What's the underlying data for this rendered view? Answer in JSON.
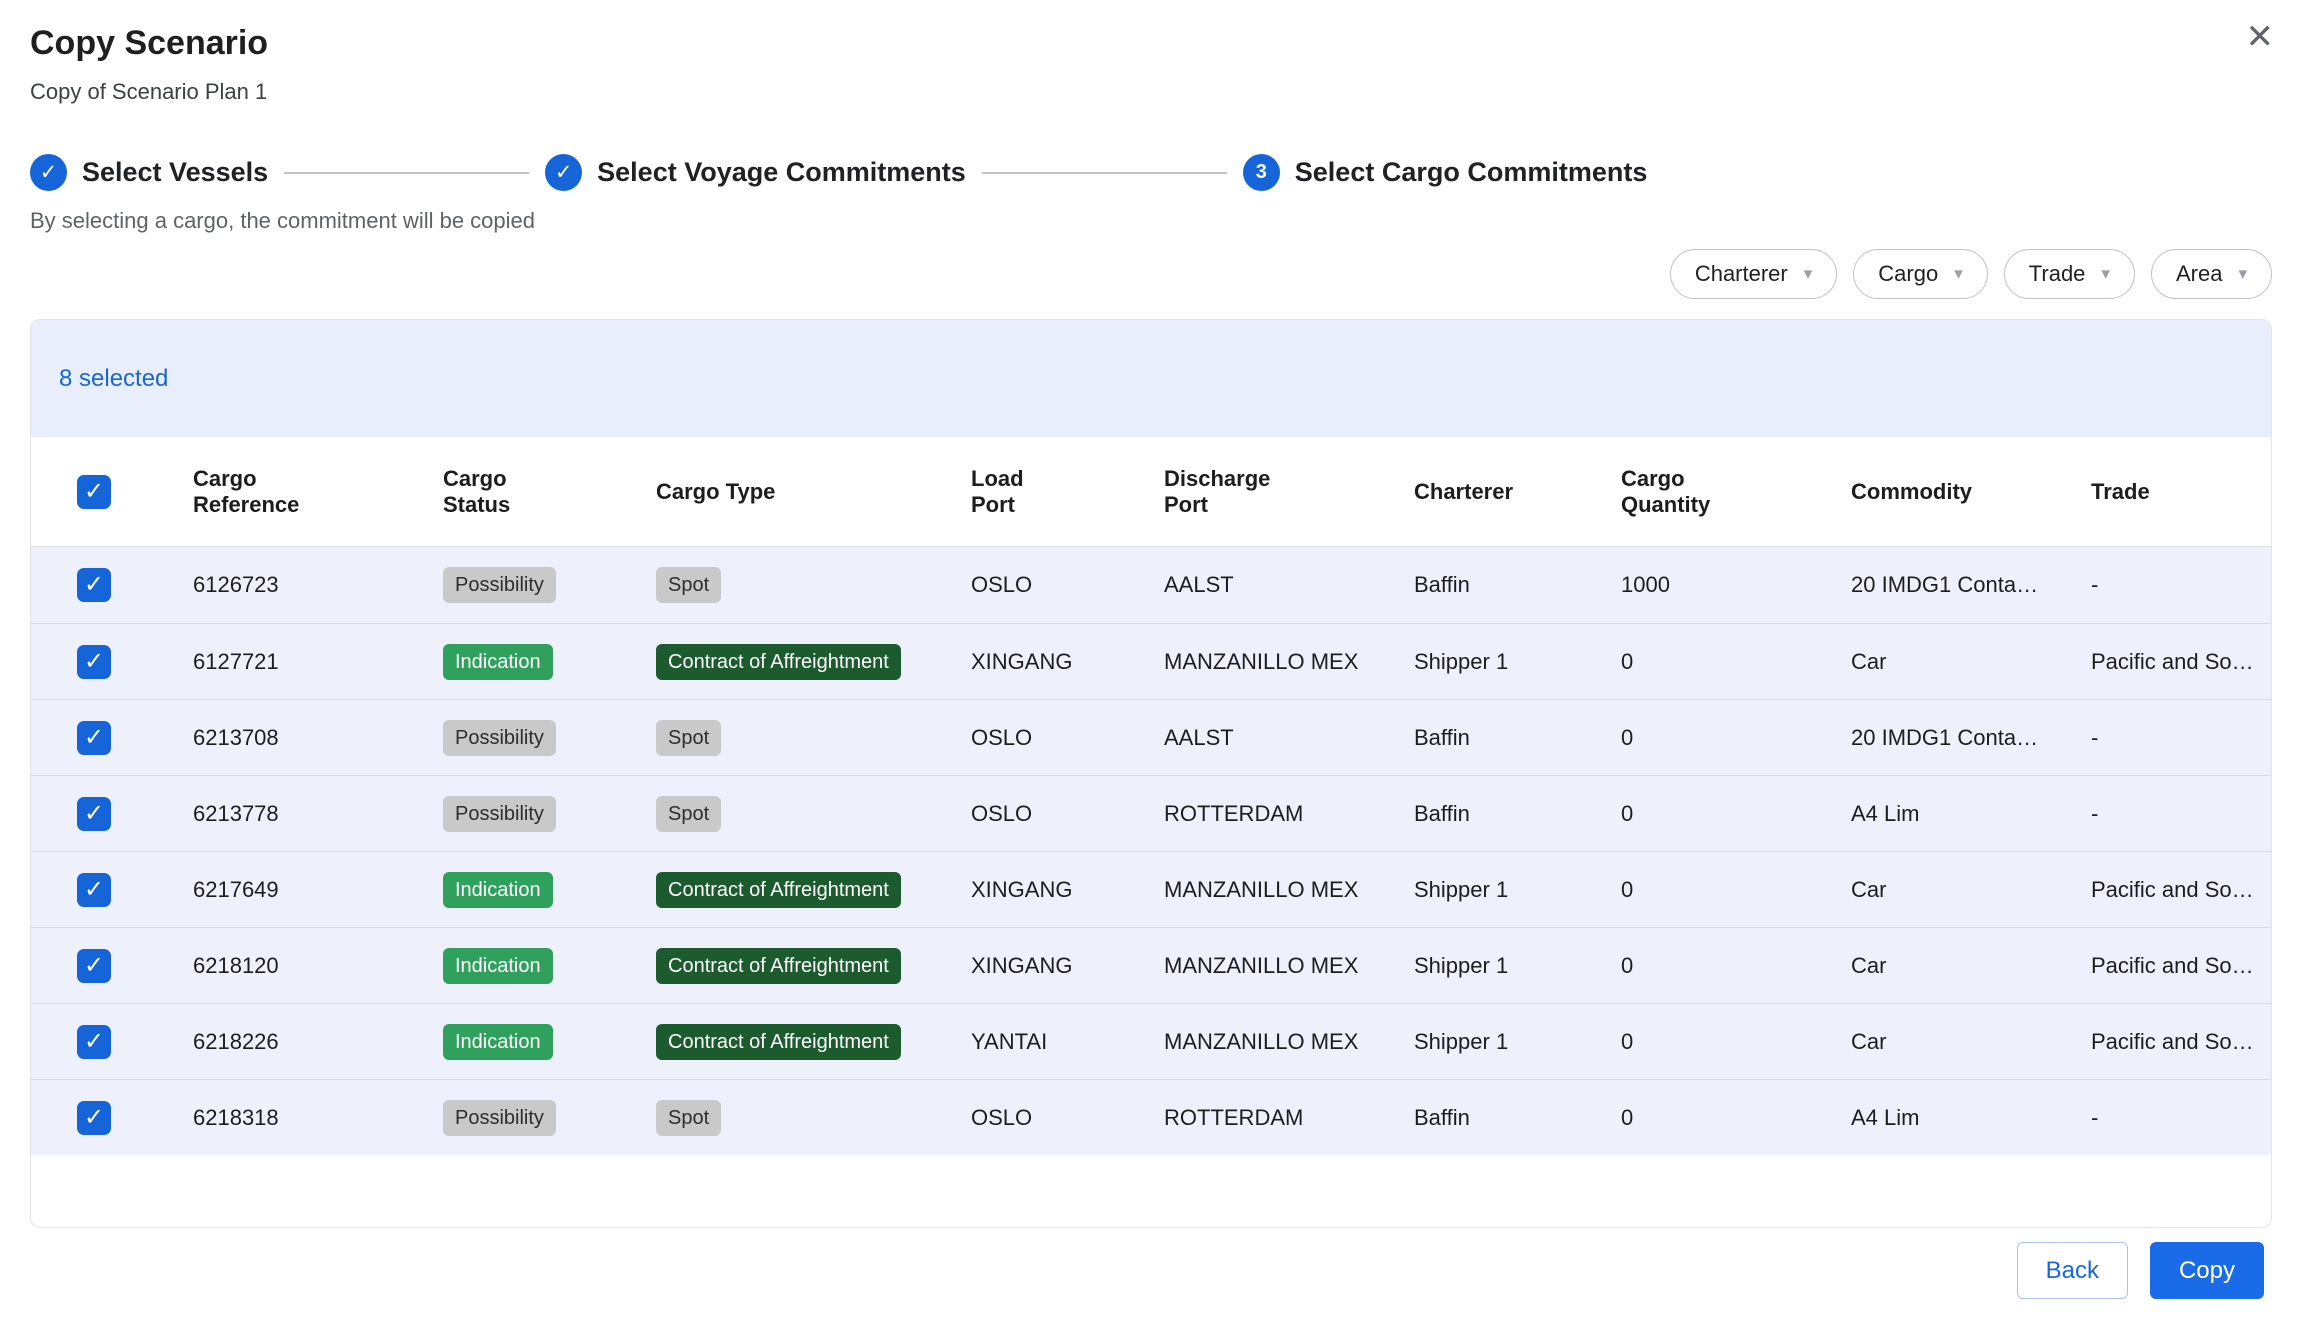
{
  "dialog": {
    "title": "Copy Scenario",
    "subtitle": "Copy of Scenario Plan 1"
  },
  "icons": {
    "close": "✕",
    "check": "✓",
    "caret_down": "▾"
  },
  "stepper": {
    "steps": [
      {
        "label": "Select Vessels",
        "state": "complete"
      },
      {
        "label": "Select Voyage Commitments",
        "state": "complete"
      },
      {
        "label": "Select Cargo Commitments",
        "state": "active",
        "number": "3"
      }
    ]
  },
  "caption": "By selecting a cargo, the commitment will be copied",
  "filters": [
    {
      "label": "Charterer"
    },
    {
      "label": "Cargo"
    },
    {
      "label": "Trade"
    },
    {
      "label": "Area"
    }
  ],
  "table": {
    "selected_text": "8 selected",
    "columns": [
      {
        "line1": "Cargo",
        "line2": "Reference"
      },
      {
        "line1": "Cargo",
        "line2": "Status"
      },
      {
        "line1": "Cargo Type",
        "line2": ""
      },
      {
        "line1": "Load",
        "line2": "Port"
      },
      {
        "line1": "Discharge",
        "line2": "Port"
      },
      {
        "line1": "Charterer",
        "line2": ""
      },
      {
        "line1": "Cargo",
        "line2": "Quantity"
      },
      {
        "line1": "Commodity",
        "line2": ""
      },
      {
        "line1": "Trade",
        "line2": ""
      }
    ],
    "rows": [
      {
        "checked": true,
        "reference": "6126723",
        "status": "Possibility",
        "status_variant": "gray",
        "type": "Spot",
        "type_variant": "gray",
        "load_port": "OSLO",
        "discharge_port": "AALST",
        "charterer": "Baffin",
        "quantity": "1000",
        "commodity": "20 IMDG1 Conta…",
        "trade": "-"
      },
      {
        "checked": true,
        "reference": "6127721",
        "status": "Indication",
        "status_variant": "green",
        "type": "Contract of Affreightment",
        "type_variant": "dark-green",
        "load_port": "XINGANG",
        "discharge_port": "MANZANILLO MEX",
        "charterer": "Shipper 1",
        "quantity": "0",
        "commodity": "Car",
        "trade": "Pacific and So…"
      },
      {
        "checked": true,
        "reference": "6213708",
        "status": "Possibility",
        "status_variant": "gray",
        "type": "Spot",
        "type_variant": "gray",
        "load_port": "OSLO",
        "discharge_port": "AALST",
        "charterer": "Baffin",
        "quantity": "0",
        "commodity": "20 IMDG1 Conta…",
        "trade": "-"
      },
      {
        "checked": true,
        "reference": "6213778",
        "status": "Possibility",
        "status_variant": "gray",
        "type": "Spot",
        "type_variant": "gray",
        "load_port": "OSLO",
        "discharge_port": "ROTTERDAM",
        "charterer": "Baffin",
        "quantity": "0",
        "commodity": "A4 Lim",
        "trade": "-"
      },
      {
        "checked": true,
        "reference": "6217649",
        "status": "Indication",
        "status_variant": "green",
        "type": "Contract of Affreightment",
        "type_variant": "dark-green",
        "load_port": "XINGANG",
        "discharge_port": "MANZANILLO MEX",
        "charterer": "Shipper 1",
        "quantity": "0",
        "commodity": "Car",
        "trade": "Pacific and So…"
      },
      {
        "checked": true,
        "reference": "6218120",
        "status": "Indication",
        "status_variant": "green",
        "type": "Contract of Affreightment",
        "type_variant": "dark-green",
        "load_port": "XINGANG",
        "discharge_port": "MANZANILLO MEX",
        "charterer": "Shipper 1",
        "quantity": "0",
        "commodity": "Car",
        "trade": "Pacific and So…"
      },
      {
        "checked": true,
        "reference": "6218226",
        "status": "Indication",
        "status_variant": "green",
        "type": "Contract of Affreightment",
        "type_variant": "dark-green",
        "load_port": "YANTAI",
        "discharge_port": "MANZANILLO MEX",
        "charterer": "Shipper 1",
        "quantity": "0",
        "commodity": "Car",
        "trade": "Pacific and So…"
      },
      {
        "checked": true,
        "reference": "6218318",
        "status": "Possibility",
        "status_variant": "gray",
        "type": "Spot",
        "type_variant": "gray",
        "load_port": "OSLO",
        "discharge_port": "ROTTERDAM",
        "charterer": "Baffin",
        "quantity": "0",
        "commodity": "A4 Lim",
        "trade": "-"
      }
    ]
  },
  "footer": {
    "back_label": "Back",
    "copy_label": "Copy"
  },
  "colors": {
    "accent_blue": "#1565d8",
    "copy_button_blue": "#1a6be8",
    "selected_text_blue": "#1a66d2",
    "selection_bar_bg": "#e8eefb",
    "row_bg": "#eef1fc",
    "badge_gray_bg": "#c9c9c9",
    "badge_green_bg": "#2fa15c",
    "badge_dark_green_bg": "#1b5b2d"
  }
}
